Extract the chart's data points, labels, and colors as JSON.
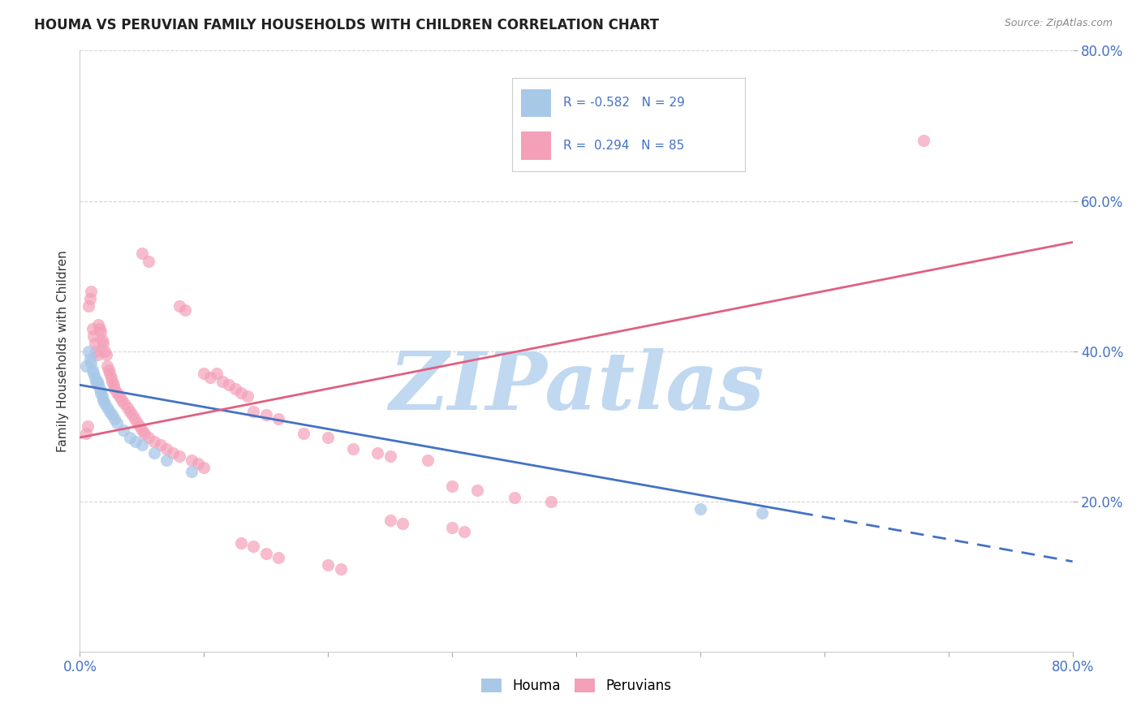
{
  "title": "HOUMA VS PERUVIAN FAMILY HOUSEHOLDS WITH CHILDREN CORRELATION CHART",
  "source": "Source: ZipAtlas.com",
  "ylabel": "Family Households with Children",
  "legend_houma": "Houma",
  "legend_peruvians": "Peruvians",
  "houma_color": "#a8c8e8",
  "peruvian_color": "#f4a0b8",
  "houma_line_color": "#4472c4",
  "peruvian_line_color": "#e06080",
  "watermark": "ZIPatlas",
  "watermark_color": "#c0d8f0",
  "xlim": [
    0.0,
    0.8
  ],
  "ylim": [
    0.0,
    0.8
  ],
  "ytick_vals": [
    0.2,
    0.4,
    0.6,
    0.8
  ],
  "ytick_labels": [
    "20.0%",
    "40.0%",
    "60.0%",
    "80.0%"
  ],
  "houma_line": {
    "x0": 0.0,
    "y0": 0.355,
    "x1": 0.58,
    "y1": 0.185,
    "dash_x0": 0.58,
    "dash_y0": 0.185,
    "dash_x1": 0.8,
    "dash_y1": 0.12
  },
  "peruvian_line": {
    "x0": 0.0,
    "y0": 0.285,
    "x1": 0.8,
    "y1": 0.545
  },
  "houma_points": [
    [
      0.005,
      0.38
    ],
    [
      0.007,
      0.4
    ],
    [
      0.008,
      0.39
    ],
    [
      0.009,
      0.385
    ],
    [
      0.01,
      0.375
    ],
    [
      0.011,
      0.37
    ],
    [
      0.012,
      0.365
    ],
    [
      0.013,
      0.36
    ],
    [
      0.014,
      0.36
    ],
    [
      0.015,
      0.355
    ],
    [
      0.016,
      0.35
    ],
    [
      0.017,
      0.345
    ],
    [
      0.018,
      0.34
    ],
    [
      0.019,
      0.335
    ],
    [
      0.02,
      0.33
    ],
    [
      0.022,
      0.325
    ],
    [
      0.024,
      0.32
    ],
    [
      0.026,
      0.315
    ],
    [
      0.028,
      0.31
    ],
    [
      0.03,
      0.305
    ],
    [
      0.035,
      0.295
    ],
    [
      0.04,
      0.285
    ],
    [
      0.045,
      0.28
    ],
    [
      0.05,
      0.275
    ],
    [
      0.06,
      0.265
    ],
    [
      0.07,
      0.255
    ],
    [
      0.09,
      0.24
    ],
    [
      0.5,
      0.19
    ],
    [
      0.55,
      0.185
    ]
  ],
  "peruvian_points": [
    [
      0.005,
      0.29
    ],
    [
      0.006,
      0.3
    ],
    [
      0.007,
      0.46
    ],
    [
      0.008,
      0.47
    ],
    [
      0.009,
      0.48
    ],
    [
      0.01,
      0.43
    ],
    [
      0.011,
      0.42
    ],
    [
      0.012,
      0.41
    ],
    [
      0.013,
      0.4
    ],
    [
      0.014,
      0.395
    ],
    [
      0.015,
      0.435
    ],
    [
      0.016,
      0.43
    ],
    [
      0.017,
      0.425
    ],
    [
      0.018,
      0.415
    ],
    [
      0.019,
      0.41
    ],
    [
      0.02,
      0.4
    ],
    [
      0.021,
      0.395
    ],
    [
      0.022,
      0.38
    ],
    [
      0.023,
      0.375
    ],
    [
      0.024,
      0.37
    ],
    [
      0.025,
      0.365
    ],
    [
      0.026,
      0.36
    ],
    [
      0.027,
      0.355
    ],
    [
      0.028,
      0.35
    ],
    [
      0.03,
      0.345
    ],
    [
      0.032,
      0.34
    ],
    [
      0.034,
      0.335
    ],
    [
      0.036,
      0.33
    ],
    [
      0.038,
      0.325
    ],
    [
      0.04,
      0.32
    ],
    [
      0.042,
      0.315
    ],
    [
      0.044,
      0.31
    ],
    [
      0.046,
      0.305
    ],
    [
      0.048,
      0.3
    ],
    [
      0.05,
      0.295
    ],
    [
      0.052,
      0.29
    ],
    [
      0.055,
      0.285
    ],
    [
      0.06,
      0.28
    ],
    [
      0.065,
      0.275
    ],
    [
      0.07,
      0.27
    ],
    [
      0.075,
      0.265
    ],
    [
      0.08,
      0.26
    ],
    [
      0.09,
      0.255
    ],
    [
      0.095,
      0.25
    ],
    [
      0.1,
      0.245
    ],
    [
      0.11,
      0.37
    ],
    [
      0.115,
      0.36
    ],
    [
      0.12,
      0.355
    ],
    [
      0.125,
      0.35
    ],
    [
      0.13,
      0.345
    ],
    [
      0.135,
      0.34
    ],
    [
      0.05,
      0.53
    ],
    [
      0.055,
      0.52
    ],
    [
      0.08,
      0.46
    ],
    [
      0.085,
      0.455
    ],
    [
      0.1,
      0.37
    ],
    [
      0.105,
      0.365
    ],
    [
      0.14,
      0.32
    ],
    [
      0.15,
      0.315
    ],
    [
      0.16,
      0.31
    ],
    [
      0.18,
      0.29
    ],
    [
      0.2,
      0.285
    ],
    [
      0.22,
      0.27
    ],
    [
      0.24,
      0.265
    ],
    [
      0.25,
      0.26
    ],
    [
      0.28,
      0.255
    ],
    [
      0.3,
      0.22
    ],
    [
      0.32,
      0.215
    ],
    [
      0.35,
      0.205
    ],
    [
      0.38,
      0.2
    ],
    [
      0.25,
      0.175
    ],
    [
      0.26,
      0.17
    ],
    [
      0.3,
      0.165
    ],
    [
      0.31,
      0.16
    ],
    [
      0.13,
      0.145
    ],
    [
      0.14,
      0.14
    ],
    [
      0.15,
      0.13
    ],
    [
      0.16,
      0.125
    ],
    [
      0.2,
      0.115
    ],
    [
      0.21,
      0.11
    ],
    [
      0.68,
      0.68
    ]
  ]
}
